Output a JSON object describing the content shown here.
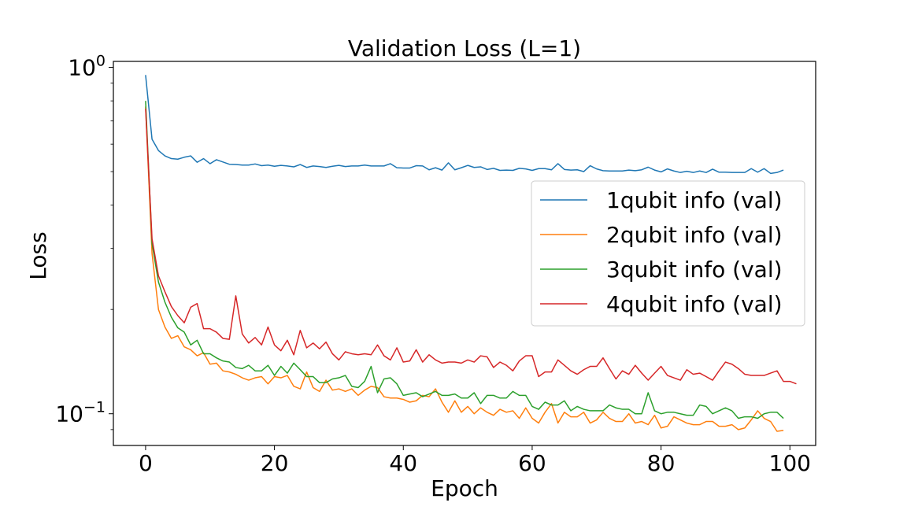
{
  "chart_data": {
    "type": "line",
    "title": "Validation Loss (L=1)",
    "xlabel": "Epoch",
    "ylabel": "Loss",
    "yscale": "log",
    "xlim": [
      -5,
      104
    ],
    "ylim": [
      0.081,
      1.04
    ],
    "grid": false,
    "legend_position": "right",
    "x_ticks": [
      0,
      20,
      40,
      60,
      80,
      100
    ],
    "y_ticks": [
      {
        "value": 1.0,
        "base": "10",
        "exp": "0"
      },
      {
        "value": 0.1,
        "base": "10",
        "exp": "−1"
      }
    ],
    "y_minor_ticks": [
      0.09,
      0.2,
      0.3,
      0.4,
      0.5,
      0.6,
      0.7,
      0.8,
      0.9
    ],
    "series": [
      {
        "name": "1qubit info (val)",
        "color": "#1f77b4",
        "values": [
          0.95,
          0.62,
          0.575,
          0.555,
          0.545,
          0.543,
          0.55,
          0.555,
          0.532,
          0.545,
          0.527,
          0.541,
          0.533,
          0.525,
          0.524,
          0.522,
          0.522,
          0.526,
          0.52,
          0.522,
          0.518,
          0.521,
          0.519,
          0.516,
          0.524,
          0.514,
          0.519,
          0.517,
          0.514,
          0.518,
          0.521,
          0.517,
          0.519,
          0.519,
          0.522,
          0.519,
          0.519,
          0.519,
          0.527,
          0.513,
          0.512,
          0.512,
          0.52,
          0.519,
          0.506,
          0.513,
          0.505,
          0.53,
          0.506,
          0.513,
          0.521,
          0.514,
          0.516,
          0.507,
          0.511,
          0.504,
          0.505,
          0.504,
          0.511,
          0.509,
          0.504,
          0.51,
          0.51,
          0.506,
          0.527,
          0.507,
          0.505,
          0.506,
          0.5,
          0.52,
          0.509,
          0.503,
          0.502,
          0.502,
          0.502,
          0.505,
          0.503,
          0.506,
          0.515,
          0.505,
          0.499,
          0.509,
          0.502,
          0.497,
          0.501,
          0.497,
          0.502,
          0.497,
          0.508,
          0.498,
          0.498,
          0.497,
          0.497,
          0.497,
          0.51,
          0.498,
          0.51,
          0.494,
          0.497,
          0.505
        ]
      },
      {
        "name": "2qubit info (val)",
        "color": "#ff7f0e",
        "values": [
          0.77,
          0.29,
          0.2,
          0.178,
          0.165,
          0.168,
          0.156,
          0.153,
          0.147,
          0.15,
          0.139,
          0.14,
          0.133,
          0.132,
          0.13,
          0.127,
          0.125,
          0.127,
          0.128,
          0.122,
          0.128,
          0.127,
          0.129,
          0.12,
          0.118,
          0.132,
          0.119,
          0.116,
          0.125,
          0.117,
          0.118,
          0.116,
          0.118,
          0.113,
          0.117,
          0.12,
          0.119,
          0.112,
          0.111,
          0.111,
          0.11,
          0.108,
          0.109,
          0.113,
          0.112,
          0.118,
          0.108,
          0.101,
          0.109,
          0.101,
          0.105,
          0.1,
          0.104,
          0.101,
          0.099,
          0.103,
          0.101,
          0.102,
          0.097,
          0.104,
          0.097,
          0.094,
          0.101,
          0.107,
          0.094,
          0.101,
          0.098,
          0.098,
          0.101,
          0.094,
          0.096,
          0.101,
          0.097,
          0.095,
          0.095,
          0.1,
          0.094,
          0.095,
          0.093,
          0.099,
          0.091,
          0.092,
          0.098,
          0.096,
          0.094,
          0.093,
          0.093,
          0.095,
          0.095,
          0.092,
          0.092,
          0.093,
          0.09,
          0.091,
          0.096,
          0.102,
          0.097,
          0.095,
          0.089,
          0.0895
        ]
      },
      {
        "name": "3qubit info (val)",
        "color": "#2ca02c",
        "values": [
          0.8,
          0.31,
          0.24,
          0.21,
          0.19,
          0.177,
          0.172,
          0.158,
          0.163,
          0.149,
          0.149,
          0.145,
          0.142,
          0.141,
          0.136,
          0.135,
          0.138,
          0.133,
          0.133,
          0.138,
          0.129,
          0.137,
          0.131,
          0.14,
          0.134,
          0.128,
          0.128,
          0.123,
          0.123,
          0.126,
          0.127,
          0.129,
          0.12,
          0.119,
          0.124,
          0.137,
          0.115,
          0.126,
          0.127,
          0.122,
          0.113,
          0.114,
          0.115,
          0.112,
          0.114,
          0.116,
          0.113,
          0.113,
          0.114,
          0.111,
          0.111,
          0.115,
          0.107,
          0.113,
          0.113,
          0.111,
          0.111,
          0.116,
          0.113,
          0.113,
          0.105,
          0.103,
          0.108,
          0.106,
          0.106,
          0.109,
          0.102,
          0.105,
          0.103,
          0.102,
          0.102,
          0.102,
          0.106,
          0.104,
          0.103,
          0.103,
          0.1,
          0.1,
          0.115,
          0.102,
          0.1,
          0.101,
          0.101,
          0.1,
          0.099,
          0.099,
          0.106,
          0.105,
          0.1,
          0.102,
          0.104,
          0.102,
          0.097,
          0.098,
          0.098,
          0.097,
          0.1,
          0.101,
          0.101,
          0.097
        ]
      },
      {
        "name": "4qubit info (val)",
        "color": "#d62728",
        "values": [
          0.76,
          0.32,
          0.25,
          0.225,
          0.204,
          0.192,
          0.183,
          0.203,
          0.208,
          0.176,
          0.176,
          0.172,
          0.165,
          0.164,
          0.219,
          0.17,
          0.16,
          0.166,
          0.158,
          0.178,
          0.158,
          0.152,
          0.163,
          0.148,
          0.174,
          0.155,
          0.16,
          0.154,
          0.161,
          0.149,
          0.143,
          0.151,
          0.149,
          0.148,
          0.149,
          0.148,
          0.158,
          0.147,
          0.143,
          0.155,
          0.141,
          0.142,
          0.153,
          0.141,
          0.148,
          0.143,
          0.14,
          0.141,
          0.141,
          0.14,
          0.143,
          0.141,
          0.147,
          0.146,
          0.136,
          0.141,
          0.138,
          0.133,
          0.142,
          0.147,
          0.147,
          0.128,
          0.132,
          0.132,
          0.143,
          0.138,
          0.133,
          0.13,
          0.134,
          0.137,
          0.137,
          0.145,
          0.135,
          0.126,
          0.133,
          0.13,
          0.138,
          0.131,
          0.125,
          0.131,
          0.137,
          0.129,
          0.127,
          0.125,
          0.134,
          0.13,
          0.131,
          0.128,
          0.125,
          0.133,
          0.141,
          0.139,
          0.135,
          0.13,
          0.129,
          0.129,
          0.129,
          0.131,
          0.133,
          0.124,
          0.124,
          0.122
        ]
      }
    ]
  }
}
